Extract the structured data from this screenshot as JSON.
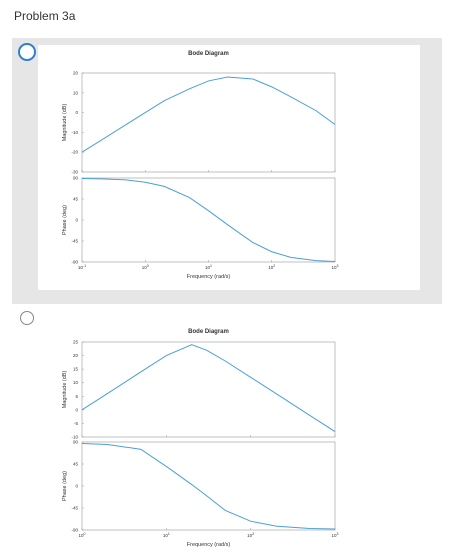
{
  "header": {
    "title": "Problem 3a"
  },
  "options": [
    {
      "selected": true,
      "plot": {
        "type": "line",
        "title": "Bode Diagram",
        "xlabel": "Frequency (rad/s)",
        "xscale": "log",
        "x": [
          0.1,
          0.2,
          0.5,
          1,
          2,
          5,
          10,
          20,
          50,
          100,
          200,
          500,
          1000
        ],
        "xlim": [
          0.1,
          1000
        ],
        "xticks": [
          {
            "value": 0.1,
            "label": "10",
            "exp": "-1"
          },
          {
            "value": 1,
            "label": "10",
            "exp": "0"
          },
          {
            "value": 10,
            "label": "10",
            "exp": "1"
          },
          {
            "value": 100,
            "label": "10",
            "exp": "2"
          },
          {
            "value": 1000,
            "label": "10",
            "exp": "3"
          }
        ],
        "panels": [
          {
            "ylabel": "Magnitude (dB)",
            "ylim": [
              -30,
              20
            ],
            "yticks": [
              -30,
              -20,
              -10,
              0,
              10,
              20
            ],
            "series": [
              {
                "color": "#4a9fd8",
                "values": [
                  -20,
                  -14,
                  -6,
                  0,
                  6,
                  12,
                  16,
                  18,
                  17,
                  13,
                  8,
                  1,
                  -6
                ]
              }
            ]
          },
          {
            "ylabel": "Phase (deg)",
            "ylim": [
              -90,
              90
            ],
            "yticks": [
              -90,
              -45,
              0,
              45,
              90
            ],
            "series": [
              {
                "color": "#4a9fd8",
                "values": [
                  89,
                  88,
                  86,
                  81,
                  72,
                  48,
                  20,
                  -10,
                  -48,
                  -68,
                  -80,
                  -87,
                  -89
                ]
              }
            ]
          }
        ]
      }
    },
    {
      "selected": false,
      "plot": {
        "type": "line",
        "title": "Bode Diagram",
        "xlabel": "Frequency (rad/s)",
        "xscale": "log",
        "x": [
          1,
          2,
          5,
          10,
          20,
          30,
          50,
          100,
          200,
          500,
          1000
        ],
        "xlim": [
          1,
          1000
        ],
        "xticks": [
          {
            "value": 1,
            "label": "10",
            "exp": "0"
          },
          {
            "value": 10,
            "label": "10",
            "exp": "1"
          },
          {
            "value": 100,
            "label": "10",
            "exp": "2"
          },
          {
            "value": 1000,
            "label": "10",
            "exp": "3"
          }
        ],
        "panels": [
          {
            "ylabel": "Magnitude (dB)",
            "ylim": [
              -10,
              25
            ],
            "yticks": [
              -10,
              -5,
              0,
              5,
              10,
              15,
              20,
              25
            ],
            "series": [
              {
                "color": "#4a9fd8",
                "values": [
                  0,
                  6,
                  14,
                  20,
                  24,
                  22,
                  18,
                  12,
                  6,
                  -2,
                  -8
                ]
              }
            ]
          },
          {
            "ylabel": "Phase (deg)",
            "ylim": [
              -90,
              90
            ],
            "yticks": [
              -90,
              -45,
              0,
              45,
              90
            ],
            "series": [
              {
                "color": "#4a9fd8",
                "values": [
                  87,
                  85,
                  75,
                  40,
                  3,
                  -20,
                  -50,
                  -72,
                  -82,
                  -87,
                  -88
                ]
              }
            ]
          }
        ]
      }
    }
  ]
}
